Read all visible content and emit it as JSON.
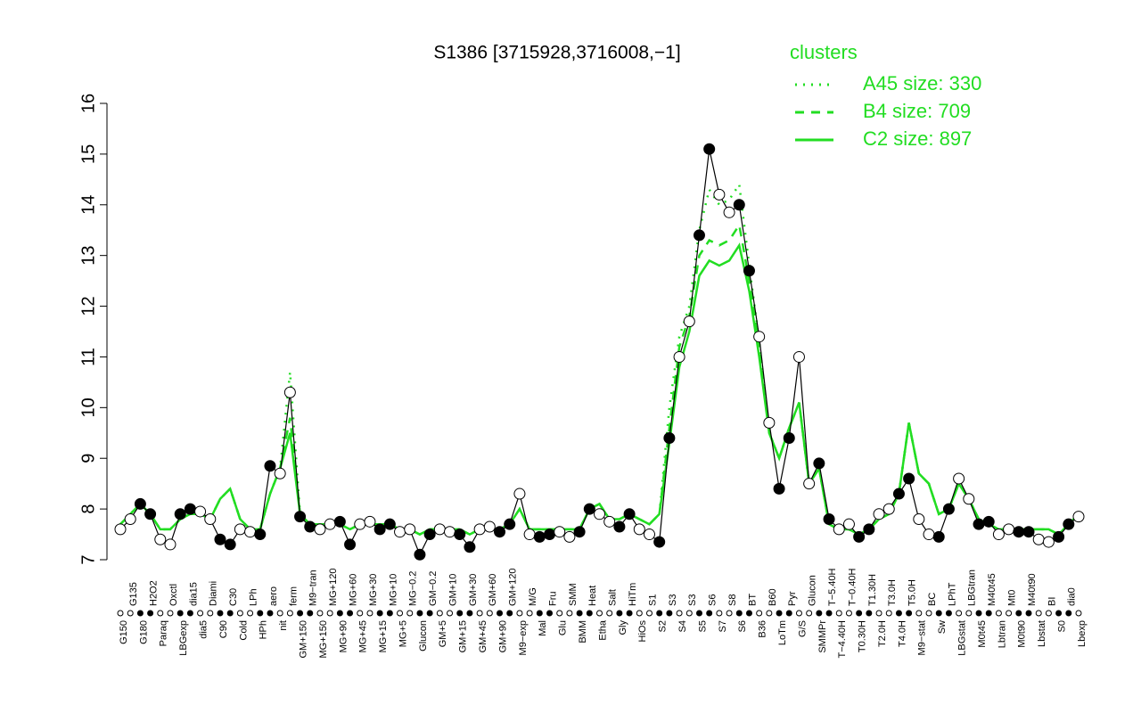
{
  "chart_data": {
    "type": "line",
    "title": "S1386 [3715928,3716008,−1]",
    "legend_title": "clusters",
    "categories": [
      "G150",
      "G135",
      "G180",
      "H2O2",
      "Paraq",
      "Oxctl",
      "LBGexp",
      "dia15",
      "dia5",
      "Diami",
      "C90",
      "C30",
      "Cold",
      "LPh",
      "HPh",
      "aero",
      "nit",
      "ferm",
      "GM+150",
      "M9−tran",
      "MG+150",
      "MG+120",
      "MG+90",
      "MG+60",
      "MG+45",
      "MG+30",
      "MG+15",
      "MG+10",
      "MG+5",
      "MG−0.2",
      "Glucon",
      "GM−0.2",
      "GM+5",
      "GM+10",
      "GM+15",
      "GM+30",
      "GM+45",
      "GM+60",
      "GM+90",
      "GM+120",
      "M9−exp",
      "M/G",
      "Mal",
      "Fru",
      "Glu",
      "SMM",
      "BMM",
      "Heat",
      "Etha",
      "Salt",
      "Gly",
      "HiTm",
      "HiOs",
      "S1",
      "S2",
      "S3",
      "S4",
      "S3",
      "S5",
      "S6",
      "S7",
      "S8",
      "S6",
      "BT",
      "B36",
      "B60",
      "LoTm",
      "Pyr",
      "G/S",
      "Glucon",
      "SMMPr",
      "T−5.40H",
      "T−4.40H",
      "T−0.40H",
      "T0.30H",
      "T1.30H",
      "T2.0H",
      "T3.0H",
      "T4.0H",
      "T5.0H",
      "M9−stat",
      "BC",
      "Sw",
      "LPhT",
      "LBGstat",
      "LBGtran",
      "M0t45",
      "M40t45",
      "Lbtran",
      "Mt0",
      "M0t90",
      "M40t90",
      "Lbstat",
      "BI",
      "S0",
      "dia0",
      "Lbexp"
    ],
    "values": [
      7.6,
      7.8,
      8.1,
      7.9,
      7.4,
      7.3,
      7.9,
      8.0,
      7.95,
      7.8,
      7.4,
      7.3,
      7.6,
      7.55,
      7.5,
      8.85,
      8.7,
      10.3,
      7.85,
      7.65,
      7.6,
      7.7,
      7.75,
      7.3,
      7.7,
      7.75,
      7.6,
      7.7,
      7.55,
      7.6,
      7.1,
      7.5,
      7.6,
      7.55,
      7.5,
      7.25,
      7.6,
      7.65,
      7.55,
      7.7,
      8.3,
      7.5,
      7.45,
      7.5,
      7.55,
      7.45,
      7.55,
      8.0,
      7.9,
      7.75,
      7.65,
      7.9,
      7.6,
      7.5,
      7.35,
      9.4,
      11.0,
      11.7,
      13.4,
      15.1,
      14.2,
      13.85,
      14.0,
      12.7,
      11.4,
      9.7,
      8.4,
      9.4,
      11.0,
      8.5,
      8.9,
      7.8,
      7.6,
      7.7,
      7.45,
      7.6,
      7.9,
      8.0,
      8.3,
      8.6,
      7.8,
      7.5,
      7.45,
      8.0,
      8.6,
      8.2,
      7.7,
      7.75,
      7.5,
      7.6,
      7.55,
      7.55,
      7.4,
      7.35,
      7.45,
      7.7,
      7.85
    ],
    "series": [
      {
        "name": "A45 size: 330",
        "color": "#22dd22",
        "line_style": "dotted",
        "values": [
          7.7,
          7.9,
          8.1,
          7.9,
          7.6,
          7.6,
          7.8,
          7.9,
          7.9,
          7.8,
          8.2,
          8.4,
          7.8,
          7.6,
          7.6,
          8.3,
          8.8,
          10.7,
          7.9,
          7.7,
          7.7,
          7.7,
          7.7,
          7.6,
          7.7,
          7.7,
          7.7,
          7.7,
          7.6,
          7.6,
          7.5,
          7.6,
          7.6,
          7.6,
          7.6,
          7.5,
          7.6,
          7.6,
          7.6,
          7.7,
          8.0,
          7.6,
          7.6,
          7.6,
          7.6,
          7.6,
          7.6,
          8.0,
          8.1,
          7.8,
          7.8,
          7.9,
          7.8,
          7.7,
          7.9,
          10.0,
          11.4,
          12.0,
          13.5,
          14.3,
          14.0,
          14.1,
          14.4,
          12.8,
          11.3,
          9.5,
          9.0,
          9.6,
          10.1,
          8.5,
          8.8,
          7.7,
          7.6,
          7.6,
          7.5,
          7.6,
          7.8,
          7.9,
          8.3,
          9.7,
          8.7,
          8.5,
          7.9,
          8.0,
          8.5,
          8.2,
          7.8,
          7.7,
          7.6,
          7.6,
          7.6,
          7.6,
          7.6,
          7.6,
          7.5,
          7.7,
          7.9
        ]
      },
      {
        "name": "B4 size: 709",
        "color": "#22dd22",
        "line_style": "dashed",
        "values": [
          7.7,
          7.9,
          8.1,
          7.9,
          7.6,
          7.6,
          7.8,
          7.9,
          7.9,
          7.8,
          8.2,
          8.4,
          7.8,
          7.6,
          7.6,
          8.3,
          8.8,
          9.8,
          7.9,
          7.7,
          7.7,
          7.7,
          7.7,
          7.6,
          7.7,
          7.7,
          7.7,
          7.7,
          7.6,
          7.6,
          7.5,
          7.6,
          7.6,
          7.6,
          7.6,
          7.5,
          7.6,
          7.6,
          7.6,
          7.7,
          8.0,
          7.6,
          7.6,
          7.6,
          7.6,
          7.6,
          7.6,
          8.0,
          8.1,
          7.8,
          7.8,
          7.9,
          7.8,
          7.7,
          7.9,
          9.6,
          11.2,
          11.8,
          13.0,
          13.3,
          13.2,
          13.3,
          13.6,
          12.5,
          11.2,
          9.5,
          9.0,
          9.6,
          10.1,
          8.5,
          8.8,
          7.7,
          7.6,
          7.6,
          7.5,
          7.6,
          7.8,
          7.9,
          8.3,
          9.7,
          8.7,
          8.5,
          7.9,
          8.0,
          8.5,
          8.2,
          7.8,
          7.7,
          7.6,
          7.6,
          7.6,
          7.6,
          7.6,
          7.6,
          7.5,
          7.7,
          7.9
        ]
      },
      {
        "name": "C2 size: 897",
        "color": "#22dd22",
        "line_style": "solid",
        "values": [
          7.7,
          7.9,
          8.1,
          7.9,
          7.6,
          7.6,
          7.8,
          7.9,
          7.9,
          7.8,
          8.2,
          8.4,
          7.8,
          7.6,
          7.6,
          8.3,
          8.8,
          9.5,
          7.9,
          7.7,
          7.7,
          7.7,
          7.7,
          7.6,
          7.7,
          7.7,
          7.7,
          7.7,
          7.6,
          7.6,
          7.5,
          7.6,
          7.6,
          7.6,
          7.6,
          7.5,
          7.6,
          7.6,
          7.6,
          7.7,
          8.0,
          7.6,
          7.6,
          7.6,
          7.6,
          7.6,
          7.6,
          8.0,
          8.1,
          7.8,
          7.8,
          7.9,
          7.8,
          7.7,
          7.9,
          9.3,
          10.8,
          11.5,
          12.6,
          12.9,
          12.8,
          12.9,
          13.2,
          12.3,
          11.0,
          9.5,
          9.0,
          9.6,
          10.1,
          8.5,
          8.8,
          7.7,
          7.6,
          7.6,
          7.5,
          7.6,
          7.8,
          7.9,
          8.3,
          9.7,
          8.7,
          8.5,
          7.9,
          8.0,
          8.5,
          8.2,
          7.8,
          7.7,
          7.6,
          7.6,
          7.6,
          7.6,
          7.6,
          7.6,
          7.5,
          7.7,
          7.9
        ]
      }
    ],
    "ylim": [
      7,
      16
    ],
    "yticks": [
      7,
      8,
      9,
      10,
      11,
      12,
      13,
      14,
      15,
      16
    ]
  }
}
